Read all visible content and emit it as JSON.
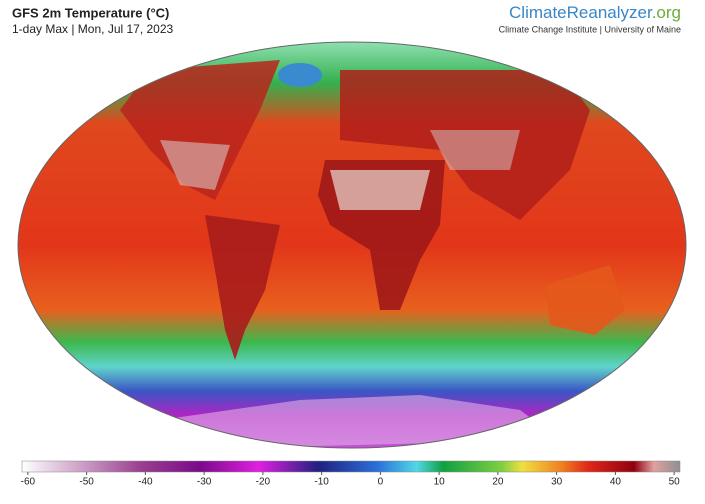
{
  "header": {
    "title": "GFS 2m Temperature (°C)",
    "subtitle": "1-day Max | Mon, Jul 17, 2023"
  },
  "brand": {
    "name": "ClimateReanalyzer",
    "domain": ".org",
    "credit": "Climate Change Institute | University of Maine"
  },
  "colorbar": {
    "lim": [
      -61,
      51
    ],
    "ticks": [
      -60,
      -50,
      -40,
      -30,
      -20,
      -10,
      0,
      10,
      20,
      30,
      40,
      50
    ]
  }
}
